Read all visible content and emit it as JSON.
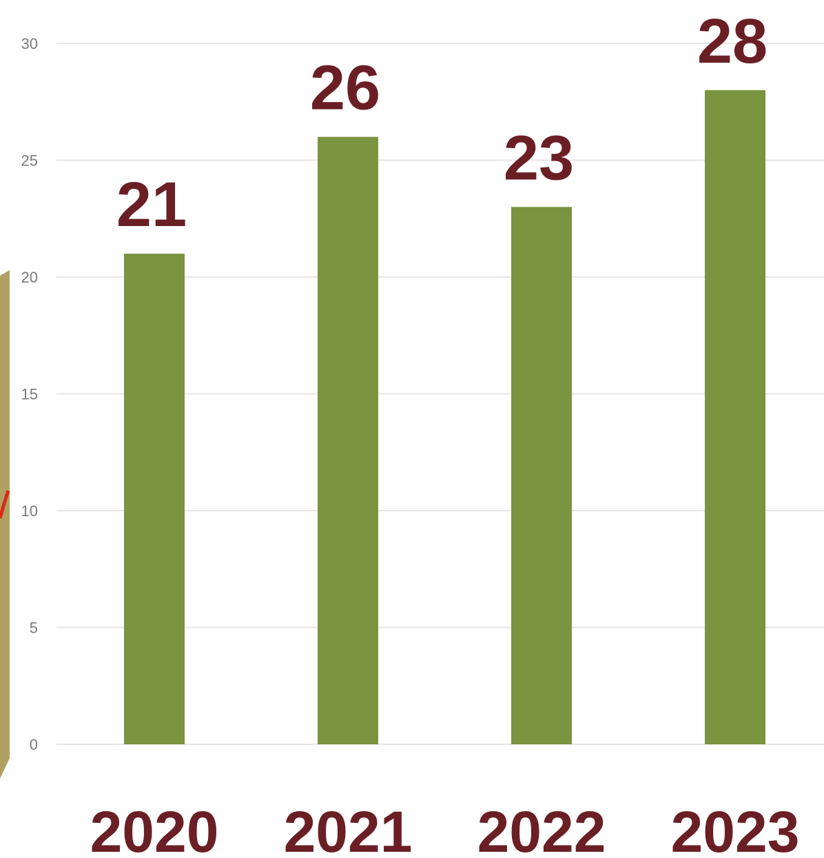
{
  "chart_data": {
    "type": "bar",
    "categories": [
      "2020",
      "2021",
      "2022",
      "2023"
    ],
    "values": [
      21,
      26,
      23,
      28
    ],
    "ylim": [
      0,
      30
    ],
    "yticks": [
      0,
      5,
      10,
      15,
      20,
      25,
      30
    ],
    "grid": true,
    "title": "",
    "xlabel": "",
    "ylabel": "",
    "bar_color": "#7a9440",
    "label_color": "#6a1f24"
  }
}
